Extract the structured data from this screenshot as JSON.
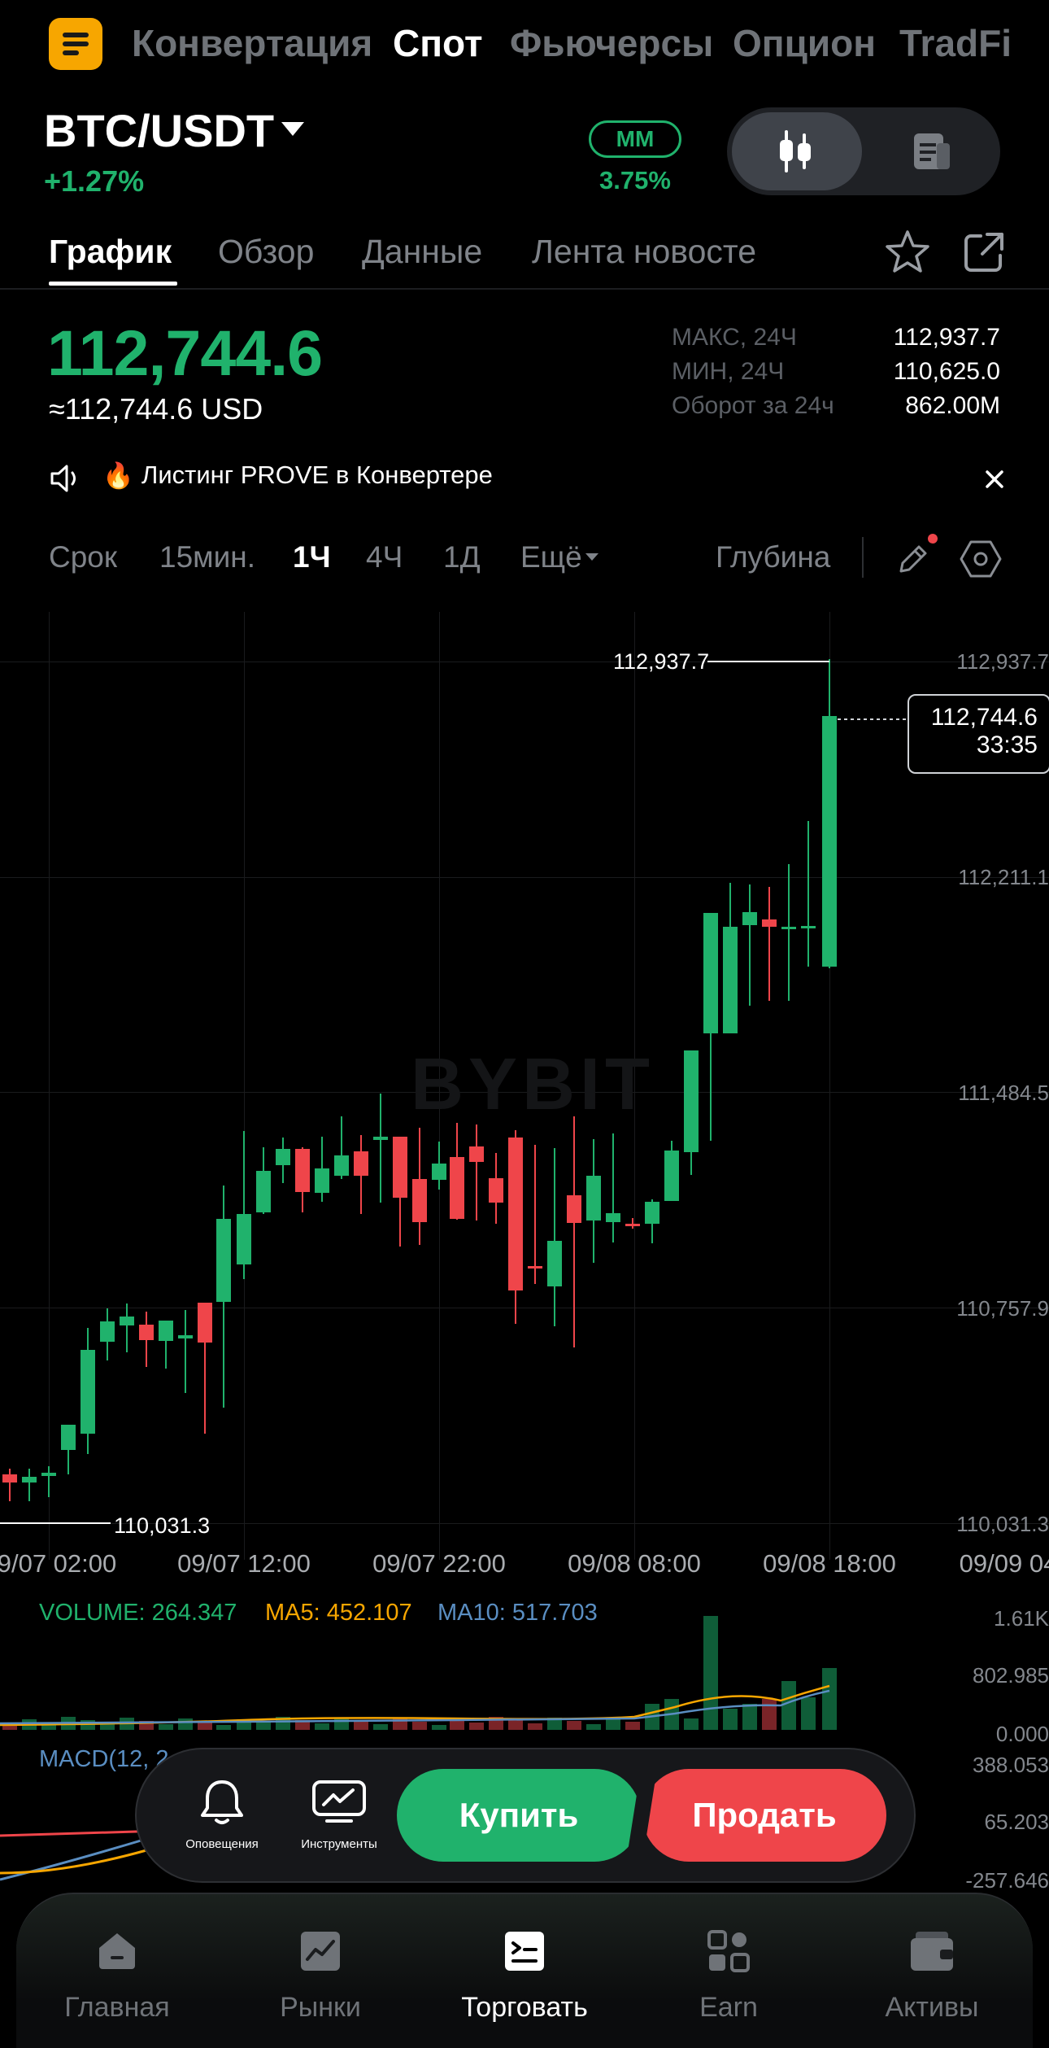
{
  "top_tabs": [
    "Конвертация",
    "Спот",
    "Фьючерсы",
    "Опцион",
    "TradFi"
  ],
  "pair": "BTC/USDT",
  "change": "+1.27%",
  "mm": {
    "label": "MM",
    "value": "3.75%"
  },
  "sub_tabs": [
    "График",
    "Обзор",
    "Данные",
    "Лента новосте"
  ],
  "price": "112,744.6",
  "price_usd": "≈112,744.6 USD",
  "stats": [
    {
      "label": "МАКС, 24Ч",
      "value": "112,937.7"
    },
    {
      "label": "МИН, 24Ч",
      "value": "110,625.0"
    },
    {
      "label": "Оборот за 24ч",
      "value": "862.00M"
    }
  ],
  "notice": "Листинг PROVE в Конвертере",
  "timeframes": [
    "Срок",
    "15мин.",
    "1Ч",
    "4Ч",
    "1Д",
    "Ещё"
  ],
  "depth": "Глубина",
  "chart": {
    "y_labels": [
      "112,937.7",
      "112,211.1",
      "111,484.5",
      "110,757.9",
      "110,031.3"
    ],
    "x_labels": [
      "9/07 02:00",
      "09/07 12:00",
      "09/07 22:00",
      "09/08 08:00",
      "09/08 18:00",
      "09/09 04"
    ],
    "max_label": "112,937.7",
    "min_label": "110,031.3",
    "current_price": "112,744.6",
    "countdown": "33:35",
    "watermark": "BYBIT",
    "accent_up": "#20b26c",
    "accent_down": "#ef454a"
  },
  "volume": {
    "volume": "VOLUME: 264.347",
    "ma5": "MA5: 452.107",
    "ma10": "MA10: 517.703",
    "y_labels": [
      "1.61K",
      "802.985",
      "0.000"
    ]
  },
  "macd": {
    "label": "MACD(12, 2",
    "y_labels": [
      "388.053",
      "65.203",
      "-257.646"
    ]
  },
  "trade": {
    "alerts": "Оповещения",
    "tools": "Инструменты",
    "buy": "Купить",
    "sell": "Продать"
  },
  "bottom_nav": [
    "Главная",
    "Рынки",
    "Торговать",
    "Earn",
    "Активы"
  ]
}
